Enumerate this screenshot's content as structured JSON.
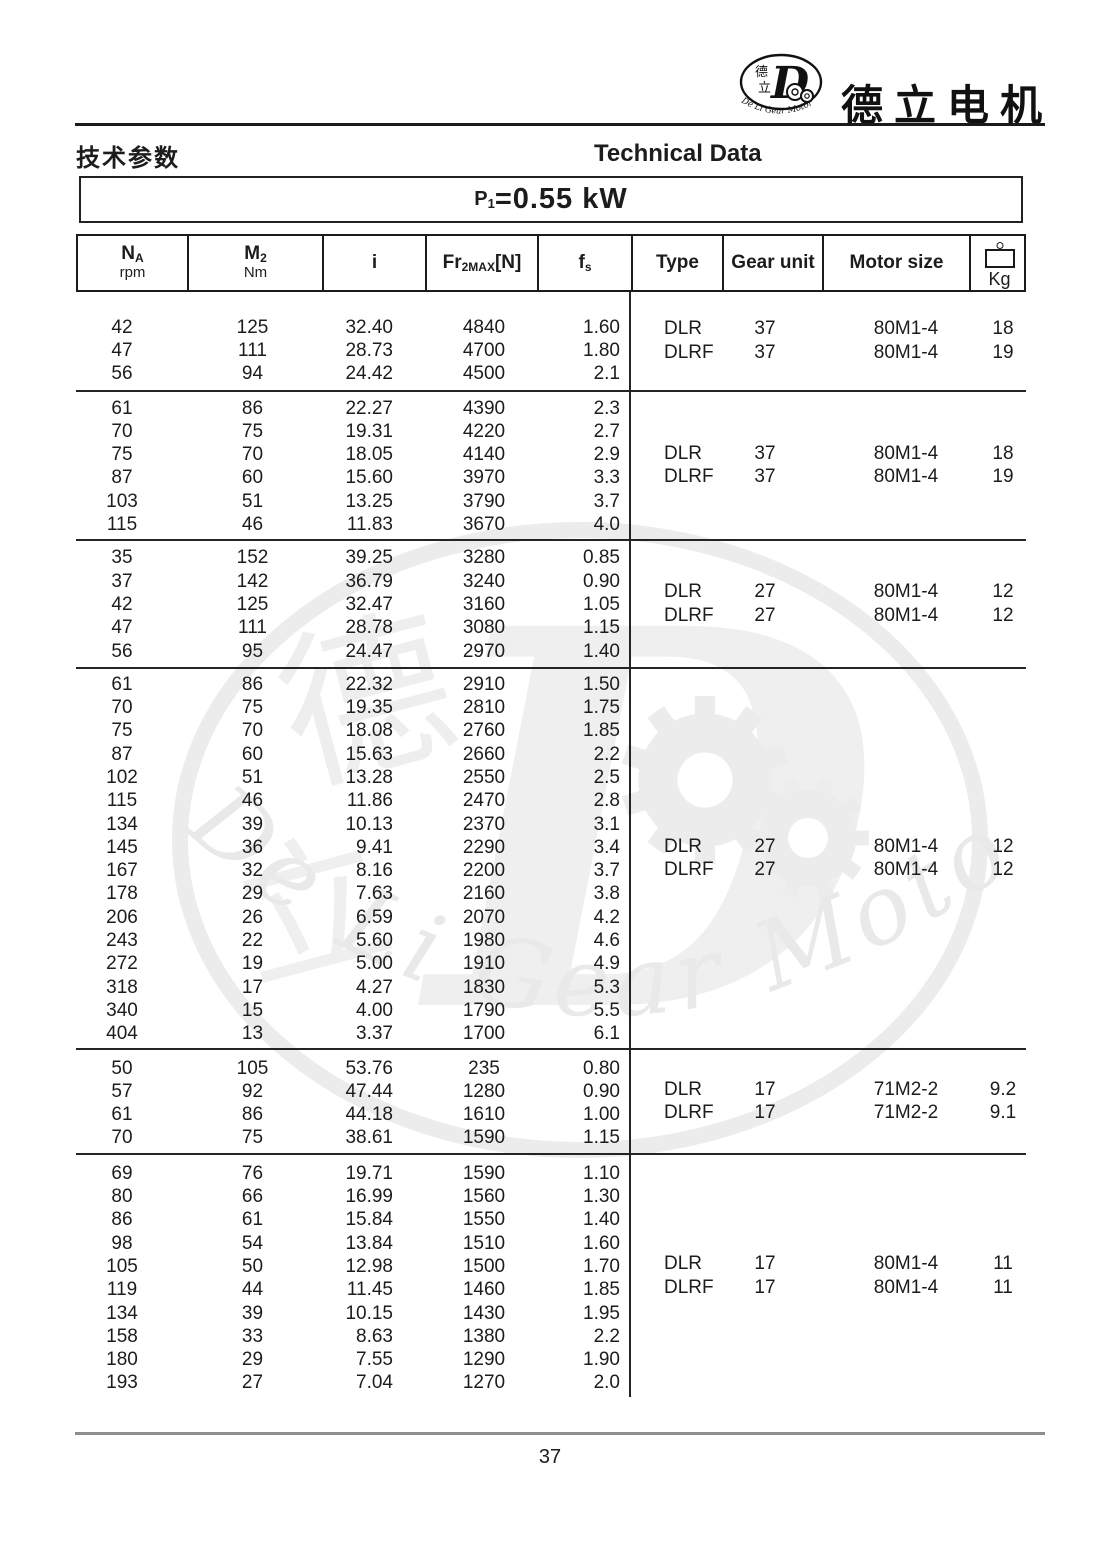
{
  "brand": {
    "name": "德立电机",
    "logo_char_top": "德",
    "logo_char_bottom": "立",
    "logo_letter": "D",
    "logo_circle_text": "De Li Gear Motor"
  },
  "header": {
    "title_zh": "技术参数",
    "title_en": "Technical Data",
    "power_prefix": "P",
    "power_sub": "1",
    "power_value": "=0.55 kW"
  },
  "watermark": {
    "letter": "D",
    "char1": "德",
    "char2": "立",
    "arc_text": "De Li Gear Motor"
  },
  "table": {
    "columns": [
      {
        "main": "N",
        "sub": "A",
        "unit": "rpm"
      },
      {
        "main": "M",
        "sub": "2",
        "unit": "Nm"
      },
      {
        "main": "i"
      },
      {
        "main": "Fr",
        "sub": "2MAX",
        "bracket": "[N]"
      },
      {
        "main": "f",
        "sub": "s"
      },
      {
        "main": "Type"
      },
      {
        "main": "Gear unit"
      },
      {
        "main": "Motor size"
      },
      {
        "main": "Kg",
        "icon": "weight-icon"
      }
    ],
    "groups": [
      {
        "rows": [
          [
            "42",
            "125",
            "32.40",
            "4840",
            "1.60"
          ],
          [
            "47",
            "111",
            "28.73",
            "4700",
            "1.80"
          ],
          [
            "56",
            "94",
            "24.42",
            "4500",
            "2.1"
          ]
        ],
        "annotations": [
          [
            "DLR",
            "37",
            "80M1-4",
            "18"
          ],
          [
            "DLRF",
            "37",
            "80M1-4",
            "19"
          ]
        ]
      },
      {
        "rows": [
          [
            "61",
            "86",
            "22.27",
            "4390",
            "2.3"
          ],
          [
            "70",
            "75",
            "19.31",
            "4220",
            "2.7"
          ],
          [
            "75",
            "70",
            "18.05",
            "4140",
            "2.9"
          ],
          [
            "87",
            "60",
            "15.60",
            "3970",
            "3.3"
          ],
          [
            "103",
            "51",
            "13.25",
            "3790",
            "3.7"
          ],
          [
            "115",
            "46",
            "11.83",
            "3670",
            "4.0"
          ]
        ],
        "annotations": [
          [
            "DLR",
            "37",
            "80M1-4",
            "18"
          ],
          [
            "DLRF",
            "37",
            "80M1-4",
            "19"
          ]
        ]
      },
      {
        "rows": [
          [
            "35",
            "152",
            "39.25",
            "3280",
            "0.85"
          ],
          [
            "37",
            "142",
            "36.79",
            "3240",
            "0.90"
          ],
          [
            "42",
            "125",
            "32.47",
            "3160",
            "1.05"
          ],
          [
            "47",
            "111",
            "28.78",
            "3080",
            "1.15"
          ],
          [
            "56",
            "95",
            "24.47",
            "2970",
            "1.40"
          ]
        ],
        "annotations": [
          [
            "DLR",
            "27",
            "80M1-4",
            "12"
          ],
          [
            "DLRF",
            "27",
            "80M1-4",
            "12"
          ]
        ]
      },
      {
        "rows": [
          [
            "61",
            "86",
            "22.32",
            "2910",
            "1.50"
          ],
          [
            "70",
            "75",
            "19.35",
            "2810",
            "1.75"
          ],
          [
            "75",
            "70",
            "18.08",
            "2760",
            "1.85"
          ],
          [
            "87",
            "60",
            "15.63",
            "2660",
            "2.2"
          ],
          [
            "102",
            "51",
            "13.28",
            "2550",
            "2.5"
          ],
          [
            "115",
            "46",
            "11.86",
            "2470",
            "2.8"
          ],
          [
            "134",
            "39",
            "10.13",
            "2370",
            "3.1"
          ],
          [
            "145",
            "36",
            "9.41",
            "2290",
            "3.4"
          ],
          [
            "167",
            "32",
            "8.16",
            "2200",
            "3.7"
          ],
          [
            "178",
            "29",
            "7.63",
            "2160",
            "3.8"
          ],
          [
            "206",
            "26",
            "6.59",
            "2070",
            "4.2"
          ],
          [
            "243",
            "22",
            "5.60",
            "1980",
            "4.6"
          ],
          [
            "272",
            "19",
            "5.00",
            "1910",
            "4.9"
          ],
          [
            "318",
            "17",
            "4.27",
            "1830",
            "5.3"
          ],
          [
            "340",
            "15",
            "4.00",
            "1790",
            "5.5"
          ],
          [
            "404",
            "13",
            "3.37",
            "1700",
            "6.1"
          ]
        ],
        "annotations": [
          [
            "DLR",
            "27",
            "80M1-4",
            "12"
          ],
          [
            "DLRF",
            "27",
            "80M1-4",
            "12"
          ]
        ]
      },
      {
        "rows": [
          [
            "50",
            "105",
            "53.76",
            "235",
            "0.80"
          ],
          [
            "57",
            "92",
            "47.44",
            "1280",
            "0.90"
          ],
          [
            "61",
            "86",
            "44.18",
            "1610",
            "1.00"
          ],
          [
            "70",
            "75",
            "38.61",
            "1590",
            "1.15"
          ]
        ],
        "annotations": [
          [
            "DLR",
            "17",
            "71M2-2",
            "9.2"
          ],
          [
            "DLRF",
            "17",
            "71M2-2",
            "9.1"
          ]
        ]
      },
      {
        "rows": [
          [
            "69",
            "76",
            "19.71",
            "1590",
            "1.10"
          ],
          [
            "80",
            "66",
            "16.99",
            "1560",
            "1.30"
          ],
          [
            "86",
            "61",
            "15.84",
            "1550",
            "1.40"
          ],
          [
            "98",
            "54",
            "13.84",
            "1510",
            "1.60"
          ],
          [
            "105",
            "50",
            "12.98",
            "1500",
            "1.70"
          ],
          [
            "119",
            "44",
            "11.45",
            "1460",
            "1.85"
          ],
          [
            "134",
            "39",
            "10.15",
            "1430",
            "1.95"
          ],
          [
            "158",
            "33",
            "8.63",
            "1380",
            "2.2"
          ],
          [
            "180",
            "29",
            "7.55",
            "1290",
            "1.90"
          ],
          [
            "193",
            "27",
            "7.04",
            "1270",
            "2.0"
          ]
        ],
        "annotations": [
          [
            "DLR",
            "17",
            "80M1-4",
            "11"
          ],
          [
            "DLRF",
            "17",
            "80M1-4",
            "11"
          ]
        ]
      }
    ]
  },
  "footer": {
    "page_number": "37"
  }
}
